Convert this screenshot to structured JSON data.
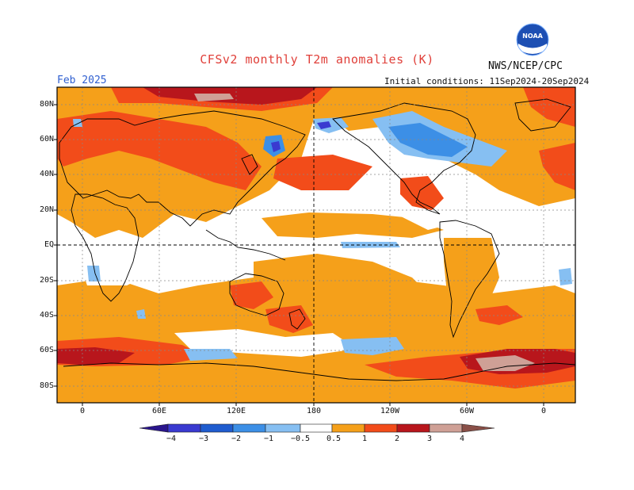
{
  "header": {
    "title": "CFSv2 monthly T2m anomalies (K)",
    "agency": "NWS/NCEP/CPC",
    "month": "Feb 2025",
    "initial_conditions": "Initial conditions: 11Sep2024-20Sep2024"
  },
  "logo": {
    "text": "NOAA",
    "icon": "noaa-logo-icon"
  },
  "map": {
    "lat_labels": [
      "80N",
      "60N",
      "40N",
      "20N",
      "EQ",
      "20S",
      "40S",
      "60S",
      "80S"
    ],
    "lon_labels": [
      "0",
      "60E",
      "120E",
      "180",
      "120W",
      "60W",
      "0"
    ]
  },
  "legend": {
    "tick_labels": [
      "−4",
      "−3",
      "−2",
      "−1",
      "−0.5",
      "0.5",
      "1",
      "2",
      "3",
      "4"
    ],
    "colors": {
      "lt_-4": "#2a158c",
      "-4_-3": "#3a3ad0",
      "-3_-2": "#1f5ccf",
      "-2_-1": "#3c8fe6",
      "-1_-0.5": "#86bff2",
      "-0.5_0.5": "#ffffff",
      "0.5_1": "#f5a01a",
      "1_2": "#f24c1a",
      "2_3": "#b8161c",
      "3_4": "#cfa096",
      "gt_4": "#8a5048"
    }
  }
}
